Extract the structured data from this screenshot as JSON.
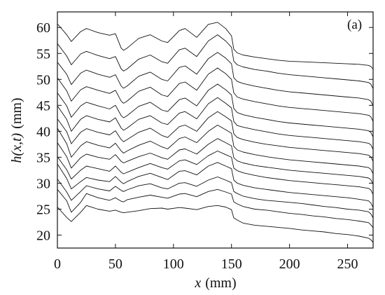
{
  "chart_data": {
    "type": "line",
    "title": "",
    "panel_label": "(a)",
    "xlabel_var": "x",
    "xlabel_unit": "(mm)",
    "ylabel_var": "h(x,t)",
    "ylabel_unit": "(mm)",
    "xlim": [
      0,
      272
    ],
    "ylim": [
      17.5,
      63
    ],
    "xticks": [
      0,
      50,
      100,
      150,
      200,
      250
    ],
    "yticks": [
      20,
      25,
      30,
      35,
      40,
      45,
      50,
      55,
      60
    ],
    "grid": false,
    "legend": "none",
    "line_color": "#111111",
    "x": [
      0,
      8,
      12,
      20,
      25,
      35,
      45,
      50,
      55,
      57,
      60,
      70,
      80,
      90,
      95,
      105,
      110,
      120,
      130,
      138,
      145,
      150,
      152,
      155,
      160,
      170,
      180,
      190,
      200,
      210,
      220,
      230,
      240,
      250,
      260,
      268,
      270,
      272
    ],
    "series": [
      {
        "values": [
          25.4,
          23.4,
          22.6,
          24.4,
          25.7,
          25.0,
          24.6,
          24.8,
          24.4,
          24.3,
          24.4,
          24.7,
          25.1,
          25.2,
          25.0,
          25.3,
          25.2,
          24.9,
          25.5,
          25.7,
          25.4,
          24.9,
          23.3,
          22.9,
          22.3,
          21.9,
          21.7,
          21.5,
          21.3,
          21.0,
          20.8,
          20.6,
          20.3,
          20.1,
          19.8,
          19.4,
          19.1,
          18.6
        ]
      },
      {
        "values": [
          28.8,
          26.6,
          24.4,
          26.3,
          28.0,
          27.2,
          26.7,
          27.2,
          26.5,
          26.4,
          26.8,
          27.3,
          27.7,
          27.3,
          27.1,
          27.9,
          28.0,
          27.4,
          28.4,
          28.8,
          28.3,
          27.9,
          26.4,
          26.0,
          25.5,
          25.0,
          24.8,
          24.5,
          24.2,
          24.0,
          23.7,
          23.5,
          23.2,
          23.0,
          22.7,
          22.4,
          22.0,
          21.4
        ]
      },
      {
        "values": [
          30.8,
          28.3,
          26.7,
          28.4,
          29.5,
          28.9,
          28.5,
          29.4,
          28.6,
          28.4,
          28.7,
          29.5,
          29.9,
          29.1,
          28.9,
          30.0,
          30.1,
          29.4,
          30.6,
          31.2,
          30.6,
          30.1,
          28.4,
          28.0,
          27.5,
          27.0,
          26.7,
          26.5,
          26.3,
          26.1,
          25.8,
          25.5,
          25.3,
          25.0,
          24.8,
          24.5,
          24.1,
          23.3
        ]
      },
      {
        "values": [
          33.7,
          30.9,
          28.9,
          30.3,
          31.1,
          30.6,
          30.3,
          31.3,
          30.2,
          29.9,
          30.3,
          31.3,
          31.9,
          31.1,
          30.7,
          32.3,
          32.4,
          31.6,
          33.3,
          34.0,
          33.3,
          32.8,
          30.6,
          30.0,
          29.6,
          29.1,
          28.8,
          28.5,
          28.2,
          28.0,
          27.8,
          27.6,
          27.4,
          27.2,
          26.9,
          26.6,
          26.2,
          25.3
        ]
      },
      {
        "values": [
          35.1,
          32.6,
          30.8,
          32.5,
          33.3,
          32.8,
          32.3,
          33.3,
          32.1,
          31.8,
          32.1,
          33.0,
          33.8,
          33.0,
          32.7,
          34.3,
          34.5,
          33.6,
          35.3,
          36.2,
          35.5,
          35.0,
          32.9,
          32.4,
          32.0,
          31.5,
          31.1,
          30.8,
          30.5,
          30.3,
          30.1,
          29.9,
          29.7,
          29.5,
          29.3,
          29.0,
          28.7,
          27.8
        ]
      },
      {
        "values": [
          37.8,
          35.1,
          32.9,
          34.9,
          35.6,
          35.0,
          34.6,
          35.5,
          34.2,
          33.9,
          34.2,
          35.1,
          35.8,
          34.9,
          34.6,
          36.4,
          36.6,
          35.6,
          37.5,
          38.6,
          37.8,
          37.2,
          34.9,
          34.3,
          33.9,
          33.4,
          33.1,
          32.8,
          32.5,
          32.3,
          32.1,
          31.9,
          31.7,
          31.5,
          31.3,
          31.0,
          30.7,
          29.8
        ]
      },
      {
        "values": [
          40.6,
          37.6,
          35.0,
          37.2,
          38.0,
          37.3,
          36.8,
          37.7,
          36.2,
          35.8,
          36.2,
          37.3,
          38.1,
          37.0,
          36.6,
          38.6,
          38.9,
          37.8,
          40.0,
          41.2,
          40.3,
          39.6,
          37.1,
          36.4,
          36.0,
          35.5,
          35.1,
          34.8,
          34.5,
          34.3,
          34.1,
          33.9,
          33.7,
          33.5,
          33.3,
          33.0,
          32.7,
          31.8
        ]
      },
      {
        "values": [
          42.4,
          39.9,
          37.6,
          39.8,
          40.5,
          39.8,
          39.3,
          40.1,
          38.4,
          38.0,
          38.4,
          39.8,
          40.6,
          39.2,
          38.8,
          40.9,
          41.2,
          40.0,
          42.6,
          43.8,
          42.8,
          42.0,
          39.5,
          38.8,
          38.4,
          37.9,
          37.5,
          37.2,
          36.9,
          36.7,
          36.5,
          36.3,
          36.1,
          35.9,
          35.7,
          35.4,
          35.1,
          34.2
        ]
      },
      {
        "values": [
          44.9,
          42.3,
          40.0,
          42.3,
          43.0,
          42.3,
          41.8,
          42.6,
          40.6,
          40.2,
          40.6,
          42.3,
          43.0,
          41.6,
          41.3,
          43.5,
          43.8,
          42.4,
          45.3,
          46.5,
          45.4,
          44.5,
          41.9,
          41.1,
          40.8,
          40.3,
          39.9,
          39.5,
          39.2,
          39.0,
          38.8,
          38.6,
          38.4,
          38.2,
          38.0,
          37.7,
          37.4,
          36.5
        ]
      },
      {
        "values": [
          47.4,
          44.9,
          42.7,
          44.9,
          45.6,
          44.9,
          44.3,
          45.0,
          43.0,
          42.6,
          43.0,
          44.8,
          45.6,
          44.1,
          43.8,
          46.1,
          46.4,
          44.9,
          47.9,
          49.1,
          48.0,
          47.0,
          44.4,
          43.6,
          43.2,
          42.7,
          42.3,
          41.9,
          41.6,
          41.4,
          41.2,
          41.0,
          40.8,
          40.6,
          40.4,
          40.1,
          39.8,
          38.9
        ]
      },
      {
        "values": [
          50.3,
          47.8,
          45.8,
          48.0,
          48.6,
          47.9,
          47.3,
          47.9,
          45.8,
          45.4,
          45.8,
          47.7,
          48.5,
          47.0,
          46.7,
          49.2,
          49.5,
          47.9,
          51.0,
          52.2,
          51.1,
          50.0,
          47.4,
          46.6,
          46.2,
          45.7,
          45.3,
          44.9,
          44.6,
          44.4,
          44.2,
          44.0,
          43.8,
          43.6,
          43.4,
          43.1,
          42.8,
          41.9
        ]
      },
      {
        "values": [
          53.3,
          51.0,
          49.0,
          51.2,
          51.8,
          51.0,
          50.4,
          50.9,
          48.7,
          48.3,
          48.7,
          50.6,
          51.4,
          50.0,
          49.7,
          52.3,
          52.6,
          51.0,
          54.0,
          55.2,
          54.1,
          53.0,
          50.3,
          49.6,
          49.2,
          48.7,
          48.3,
          47.9,
          47.6,
          47.4,
          47.2,
          47.0,
          46.8,
          46.6,
          46.4,
          46.1,
          45.8,
          44.9
        ]
      },
      {
        "values": [
          56.9,
          54.5,
          52.8,
          54.9,
          55.4,
          54.6,
          54.0,
          54.4,
          52.0,
          51.6,
          52.0,
          53.9,
          54.7,
          53.4,
          53.1,
          55.7,
          56.0,
          54.4,
          57.4,
          58.6,
          57.4,
          56.2,
          53.5,
          52.8,
          52.4,
          51.9,
          51.6,
          51.2,
          50.9,
          50.7,
          50.5,
          50.3,
          50.1,
          49.9,
          49.7,
          49.4,
          49.1,
          48.2
        ]
      },
      {
        "values": [
          60.7,
          58.6,
          57.3,
          59.2,
          59.8,
          59.0,
          58.5,
          58.8,
          56.0,
          55.6,
          56.0,
          57.9,
          58.6,
          57.4,
          57.1,
          59.4,
          59.8,
          58.1,
          60.6,
          61.0,
          59.8,
          58.4,
          55.8,
          55.1,
          54.7,
          54.3,
          54.0,
          53.7,
          53.5,
          53.4,
          53.3,
          53.2,
          53.1,
          53.0,
          52.9,
          52.7,
          52.5,
          52.0
        ]
      }
    ]
  }
}
